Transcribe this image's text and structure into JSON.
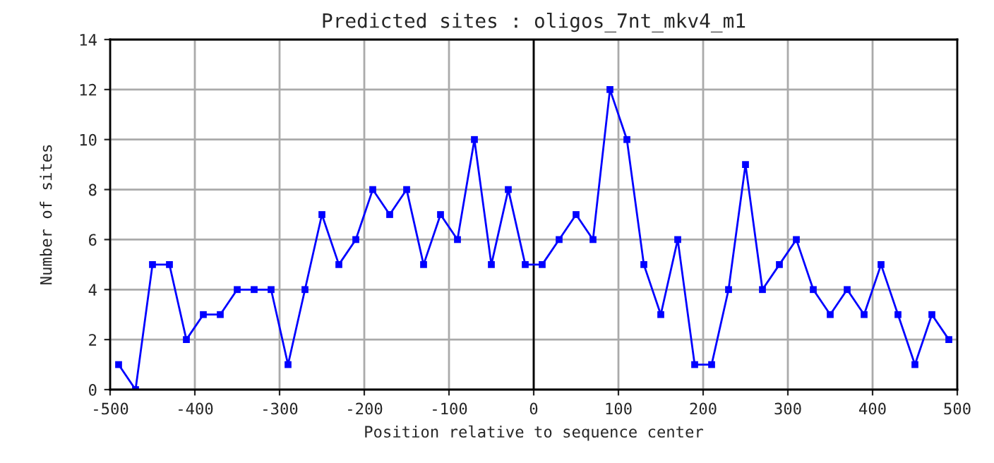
{
  "chart_data": {
    "type": "line",
    "title": "Predicted sites : oligos_7nt_mkv4_m1",
    "xlabel": "Position relative to sequence center",
    "ylabel": "Number of sites",
    "x": [
      -490,
      -470,
      -450,
      -430,
      -410,
      -390,
      -370,
      -350,
      -330,
      -310,
      -290,
      -270,
      -250,
      -230,
      -210,
      -190,
      -170,
      -150,
      -130,
      -110,
      -90,
      -70,
      -50,
      -30,
      -10,
      10,
      30,
      50,
      70,
      90,
      110,
      130,
      150,
      170,
      190,
      210,
      230,
      250,
      270,
      290,
      310,
      330,
      350,
      370,
      390,
      410,
      430,
      450,
      470,
      490
    ],
    "series": [
      {
        "color": "#0000ff",
        "values": [
          1,
          0,
          5,
          5,
          2,
          3,
          3,
          4,
          4,
          4,
          1,
          4,
          7,
          5,
          6,
          8,
          7,
          8,
          5,
          7,
          6,
          10,
          5,
          8,
          5,
          5,
          6,
          7,
          6,
          12,
          10,
          5,
          3,
          6,
          1,
          1,
          4,
          9,
          4,
          5,
          6,
          4,
          3,
          4,
          3,
          5,
          3,
          1,
          3,
          2
        ]
      }
    ],
    "xlim": [
      -500,
      500
    ],
    "xticks": [
      -500,
      -400,
      -300,
      -200,
      -100,
      0,
      100,
      200,
      300,
      400,
      500
    ],
    "ylim": [
      0,
      14
    ],
    "yticks": [
      0,
      2,
      4,
      6,
      8,
      10,
      12,
      14
    ],
    "ref_lines": [
      {
        "axis": "x",
        "value": 0,
        "color": "#000000"
      }
    ],
    "grid": true,
    "marker": "square",
    "line_style": "solid",
    "legend": false
  }
}
